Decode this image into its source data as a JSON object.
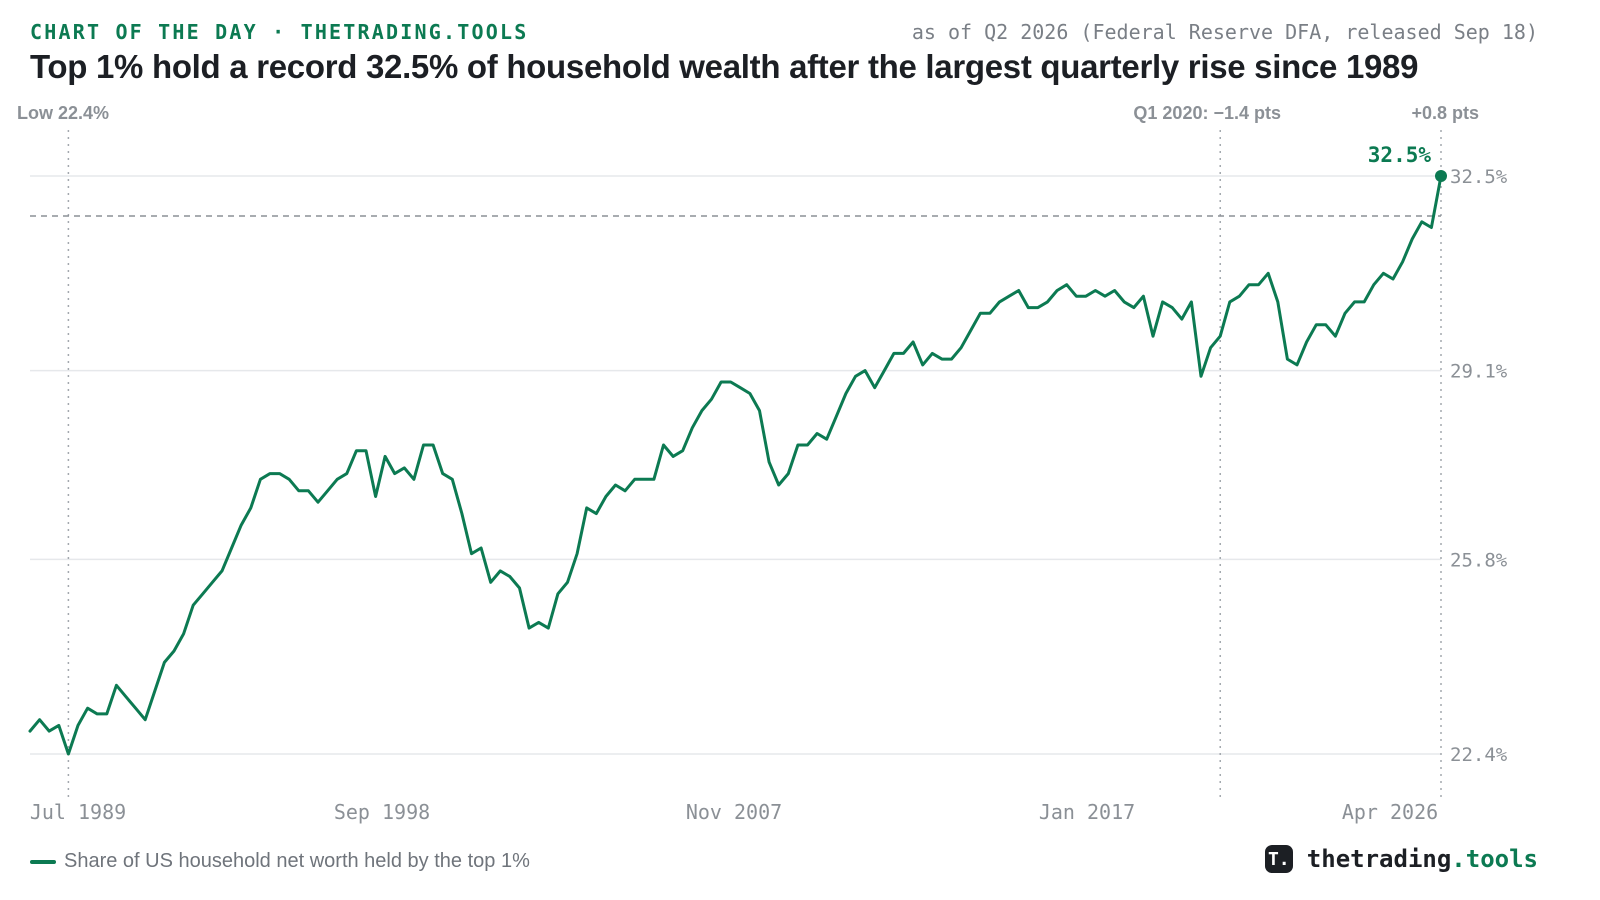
{
  "header": {
    "kicker": "CHART OF THE DAY · THETRADING.TOOLS",
    "as_of": "as of Q2 2026 (Federal Reserve DFA, released Sep 18)",
    "title": "Top 1% hold a record 32.5% of household wealth after the largest quarterly rise since 1989"
  },
  "brand": {
    "name": "thetrading",
    "tld": ".tools",
    "logo_glyph": "T."
  },
  "colors": {
    "line": "#0c7a52",
    "accent": "#0c7a52",
    "grid": "#e6e8eb",
    "annotation": "#8b9096"
  },
  "chart_data": {
    "type": "line",
    "title": "Top 1% hold a record 32.5% of household wealth after the largest quarterly rise since 1989",
    "xlabel": "",
    "ylabel": "",
    "x_ticks": [
      "Jul 1989",
      "Sep 1998",
      "Nov 2007",
      "Jan 2017",
      "Apr 2026"
    ],
    "y_ticks": [
      "32.5%",
      "29.1%",
      "25.8%",
      "22.4%"
    ],
    "ylim": [
      22.4,
      32.5
    ],
    "grid": true,
    "legend": "bottom-left",
    "series": [
      {
        "name": "Share of US household net worth held by the top 1%",
        "start": "1988 Q4",
        "frequency": "quarterly",
        "values": [
          22.8,
          23.0,
          22.8,
          22.9,
          22.4,
          22.9,
          23.2,
          23.1,
          23.1,
          23.6,
          23.4,
          23.2,
          23.0,
          23.5,
          24.0,
          24.2,
          24.5,
          25.0,
          25.2,
          25.4,
          25.6,
          26.0,
          26.4,
          26.7,
          27.2,
          27.3,
          27.3,
          27.2,
          27.0,
          27.0,
          26.8,
          27.0,
          27.2,
          27.3,
          27.7,
          27.7,
          26.9,
          27.6,
          27.3,
          27.4,
          27.2,
          27.8,
          27.8,
          27.3,
          27.2,
          26.6,
          25.9,
          26.0,
          25.4,
          25.6,
          25.5,
          25.3,
          24.6,
          24.7,
          24.6,
          25.2,
          25.4,
          25.9,
          26.7,
          26.6,
          26.9,
          27.1,
          27.0,
          27.2,
          27.2,
          27.2,
          27.8,
          27.6,
          27.7,
          28.1,
          28.4,
          28.6,
          28.9,
          28.9,
          28.8,
          28.7,
          28.4,
          27.5,
          27.1,
          27.3,
          27.8,
          27.8,
          28.0,
          27.9,
          28.3,
          28.7,
          29.0,
          29.1,
          28.8,
          29.1,
          29.4,
          29.4,
          29.6,
          29.2,
          29.4,
          29.3,
          29.3,
          29.5,
          29.8,
          30.1,
          30.1,
          30.3,
          30.4,
          30.5,
          30.2,
          30.2,
          30.3,
          30.5,
          30.6,
          30.4,
          30.4,
          30.5,
          30.4,
          30.5,
          30.3,
          30.2,
          30.4,
          29.7,
          30.3,
          30.2,
          30.0,
          30.3,
          29.0,
          29.5,
          29.7,
          30.3,
          30.4,
          30.6,
          30.6,
          30.8,
          30.3,
          29.3,
          29.2,
          29.6,
          29.9,
          29.9,
          29.7,
          30.1,
          30.3,
          30.3,
          30.6,
          30.8,
          30.7,
          31.0,
          31.4,
          31.7,
          31.6,
          32.5
        ]
      }
    ],
    "highlight": {
      "end_value_label": "32.5%",
      "low_label": "Low 22.4%",
      "covid_label": "Q1 2020: −1.4 pts",
      "rise_label": "+0.8 pts",
      "reference_value": 31.8
    }
  },
  "legend": {
    "label": "Share of US household net worth held by the top 1%"
  }
}
